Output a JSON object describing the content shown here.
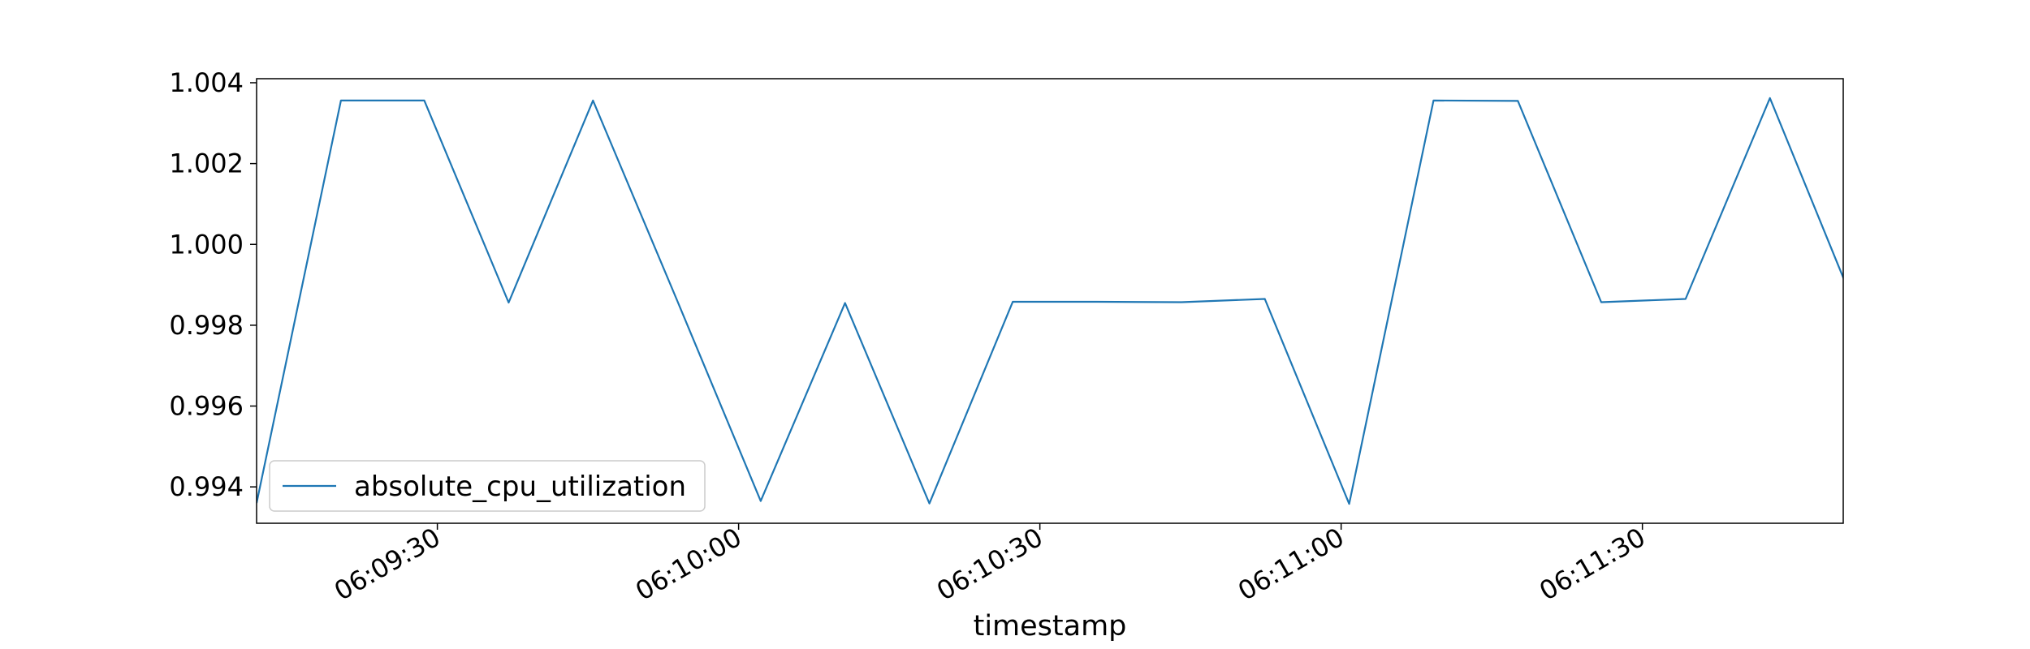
{
  "chart_data": {
    "type": "line",
    "title": "",
    "xlabel": "timestamp",
    "ylabel": "",
    "x_tick_labels": [
      "06:09:30",
      "06:10:00",
      "06:10:30",
      "06:11:00",
      "06:11:30"
    ],
    "x_tick_values_s": [
      570,
      600,
      630,
      660,
      690
    ],
    "xlim_s": [
      552,
      710
    ],
    "y_tick_labels": [
      "0.994",
      "0.996",
      "0.998",
      "1.000",
      "1.002",
      "1.004"
    ],
    "y_tick_values": [
      0.994,
      0.996,
      0.998,
      1.0,
      1.002,
      1.004
    ],
    "ylim": [
      0.9931,
      1.0041
    ],
    "legend": {
      "position": "lower-left",
      "entries": [
        "absolute_cpu_utilization"
      ]
    },
    "grid": false,
    "color": "#1f77b4",
    "series": [
      {
        "name": "absolute_cpu_utilization",
        "x": [
          "06:09:12",
          "06:09:20",
          "06:09:28",
          "06:09:36",
          "06:09:44",
          "06:09:52",
          "06:10:02",
          "06:10:10",
          "06:10:18",
          "06:10:27",
          "06:10:35",
          "06:10:43",
          "06:10:52",
          "06:11:00",
          "06:11:08",
          "06:11:16",
          "06:11:25",
          "06:11:33",
          "06:11:41",
          "06:11:50"
        ],
        "x_s": [
          552,
          560.4,
          568.7,
          577.1,
          585.5,
          593.9,
          602.2,
          610.6,
          619.0,
          627.3,
          635.7,
          644.1,
          652.4,
          660.8,
          669.2,
          677.6,
          685.9,
          694.3,
          702.7,
          711.0
        ],
        "values": [
          0.9936,
          1.00356,
          1.00356,
          0.99856,
          1.00356,
          0.9986,
          0.99365,
          0.99855,
          0.99359,
          0.99858,
          0.99858,
          0.99857,
          0.99865,
          0.99358,
          1.00356,
          1.00355,
          0.99857,
          0.99865,
          1.00362,
          0.99857
        ]
      }
    ]
  }
}
